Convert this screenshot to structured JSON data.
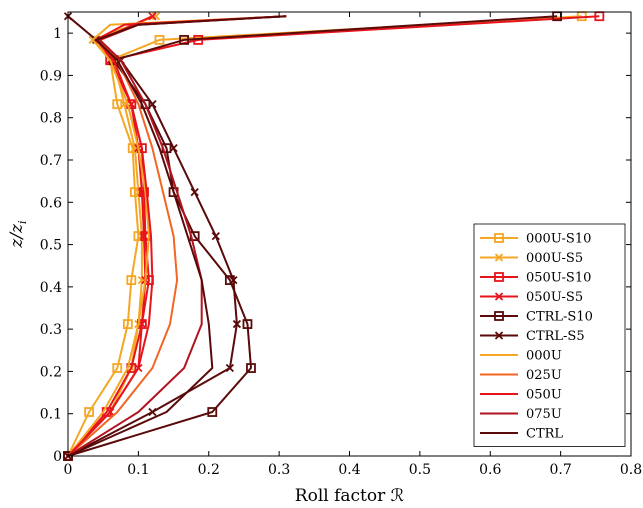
{
  "chart_data": {
    "type": "line",
    "xlabel": "Roll factor ℛ",
    "ylabel_main": "z/z",
    "ylabel_sub": "i",
    "xlim": [
      0,
      0.8
    ],
    "ylim": [
      0,
      1.05
    ],
    "xticks": [
      0,
      0.1,
      0.2,
      0.3,
      0.4,
      0.5,
      0.6,
      0.7,
      0.8
    ],
    "xtick_labels": [
      "0",
      "0.1",
      "0.2",
      "0.3",
      "0.4",
      "0.5",
      "0.6",
      "0.7",
      "0.8"
    ],
    "yticks": [
      0,
      0.1,
      0.2,
      0.3,
      0.4,
      0.5,
      0.6,
      0.7,
      0.8,
      0.9,
      1
    ],
    "ytick_labels": [
      "0",
      "0.1",
      "0.2",
      "0.3",
      "0.4",
      "0.5",
      "0.6",
      "0.7",
      "0.8",
      "0.9",
      "1"
    ],
    "grid": false,
    "legend_position": "bottom-right",
    "series": [
      {
        "name": "000U-S10",
        "color": "#f5a623",
        "marker": "square",
        "marker_y": [
          0.0,
          0.104,
          0.208,
          0.312,
          0.416,
          0.52,
          0.624,
          0.728,
          0.832,
          0.936,
          0.984,
          1.04
        ],
        "x": [
          0.0,
          0.03,
          0.07,
          0.085,
          0.09,
          0.1,
          0.095,
          0.092,
          0.07,
          0.06,
          0.13,
          0.73
        ],
        "y": [
          0.0,
          0.104,
          0.208,
          0.312,
          0.416,
          0.52,
          0.624,
          0.728,
          0.832,
          0.936,
          0.984,
          1.04
        ]
      },
      {
        "name": "000U-S5",
        "color": "#f5a623",
        "marker": "x",
        "marker_y": [
          0.0,
          0.104,
          0.208,
          0.312,
          0.416,
          0.52,
          0.624,
          0.728,
          0.832,
          0.936,
          0.984,
          1.04
        ],
        "x": [
          0.0,
          0.06,
          0.09,
          0.1,
          0.105,
          0.105,
          0.1,
          0.095,
          0.08,
          0.065,
          0.035,
          0.125
        ],
        "y": [
          0.0,
          0.104,
          0.208,
          0.312,
          0.416,
          0.52,
          0.624,
          0.728,
          0.832,
          0.936,
          0.984,
          1.04
        ]
      },
      {
        "name": "050U-S10",
        "color": "#e8141c",
        "marker": "square",
        "marker_y": [
          0.0,
          0.104,
          0.208,
          0.312,
          0.416,
          0.52,
          0.624,
          0.728,
          0.832,
          0.936,
          0.984,
          1.04
        ],
        "x": [
          0.0,
          0.055,
          0.09,
          0.105,
          0.115,
          0.11,
          0.108,
          0.105,
          0.09,
          0.06,
          0.185,
          0.755
        ],
        "y": [
          0.0,
          0.104,
          0.208,
          0.312,
          0.416,
          0.52,
          0.624,
          0.728,
          0.832,
          0.936,
          0.984,
          1.04
        ]
      },
      {
        "name": "050U-S5",
        "color": "#e8141c",
        "marker": "x",
        "marker_y": [
          0.0,
          0.104,
          0.208,
          0.312,
          0.416,
          0.52,
          0.624,
          0.728,
          0.832,
          0.936,
          0.984,
          1.04
        ],
        "x": [
          0.0,
          0.06,
          0.1,
          0.105,
          0.11,
          0.108,
          0.105,
          0.1,
          0.09,
          0.06,
          0.045,
          0.12
        ],
        "y": [
          0.0,
          0.104,
          0.208,
          0.312,
          0.416,
          0.52,
          0.624,
          0.728,
          0.832,
          0.936,
          0.984,
          1.04
        ]
      },
      {
        "name": "CTRL-S10",
        "color": "#5a0a0a",
        "marker": "square",
        "marker_y": [
          0.0,
          0.104,
          0.208,
          0.312,
          0.416,
          0.52,
          0.624,
          0.728,
          0.832,
          0.936,
          0.984,
          1.04
        ],
        "x": [
          0.0,
          0.205,
          0.26,
          0.255,
          0.23,
          0.18,
          0.15,
          0.14,
          0.11,
          0.065,
          0.165,
          0.695
        ],
        "y": [
          0.0,
          0.104,
          0.208,
          0.312,
          0.416,
          0.52,
          0.624,
          0.728,
          0.832,
          0.936,
          0.984,
          1.04
        ]
      },
      {
        "name": "CTRL-S5",
        "color": "#5a0a0a",
        "marker": "x",
        "marker_y": [
          0.0,
          0.104,
          0.208,
          0.312,
          0.416,
          0.52,
          0.624,
          0.728,
          0.832,
          0.936,
          0.984,
          1.04
        ],
        "x": [
          0.0,
          0.12,
          0.23,
          0.24,
          0.235,
          0.21,
          0.18,
          0.15,
          0.12,
          0.075,
          0.04,
          0.0
        ],
        "y": [
          0.0,
          0.104,
          0.208,
          0.312,
          0.416,
          0.52,
          0.624,
          0.728,
          0.832,
          0.936,
          0.984,
          1.04
        ]
      },
      {
        "name": "000U",
        "color": "#f5a623",
        "marker": "none",
        "x": [
          0.0,
          0.05,
          0.085,
          0.1,
          0.11,
          0.115,
          0.11,
          0.1,
          0.085,
          0.06,
          0.035,
          0.06,
          0.31
        ],
        "y": [
          0.0,
          0.104,
          0.208,
          0.312,
          0.416,
          0.52,
          0.624,
          0.728,
          0.832,
          0.936,
          0.984,
          1.02,
          1.04
        ]
      },
      {
        "name": "025U",
        "color": "#f26522",
        "marker": "none",
        "x": [
          0.0,
          0.07,
          0.12,
          0.145,
          0.155,
          0.15,
          0.135,
          0.12,
          0.1,
          0.07,
          0.045,
          0.1,
          0.31
        ],
        "y": [
          0.0,
          0.104,
          0.208,
          0.312,
          0.416,
          0.52,
          0.624,
          0.728,
          0.832,
          0.936,
          0.984,
          1.02,
          1.04
        ]
      },
      {
        "name": "050U",
        "color": "#e8141c",
        "marker": "none",
        "x": [
          0.0,
          0.06,
          0.1,
          0.115,
          0.12,
          0.118,
          0.112,
          0.105,
          0.09,
          0.065,
          0.04,
          0.08,
          0.31
        ],
        "y": [
          0.0,
          0.104,
          0.208,
          0.312,
          0.416,
          0.52,
          0.624,
          0.728,
          0.832,
          0.936,
          0.984,
          1.02,
          1.04
        ]
      },
      {
        "name": "075U",
        "color": "#b3121e",
        "marker": "none",
        "x": [
          0.0,
          0.1,
          0.165,
          0.19,
          0.19,
          0.175,
          0.155,
          0.135,
          0.11,
          0.075,
          0.045,
          0.1,
          0.31
        ],
        "y": [
          0.0,
          0.104,
          0.208,
          0.312,
          0.416,
          0.52,
          0.624,
          0.728,
          0.832,
          0.936,
          0.984,
          1.02,
          1.04
        ]
      },
      {
        "name": "CTRL",
        "color": "#5a0a0a",
        "marker": "none",
        "x": [
          0.0,
          0.14,
          0.205,
          0.2,
          0.19,
          0.17,
          0.15,
          0.13,
          0.105,
          0.07,
          0.04,
          0.1,
          0.31
        ],
        "y": [
          0.0,
          0.104,
          0.208,
          0.312,
          0.416,
          0.52,
          0.624,
          0.728,
          0.832,
          0.936,
          0.984,
          1.02,
          1.04
        ]
      }
    ]
  }
}
